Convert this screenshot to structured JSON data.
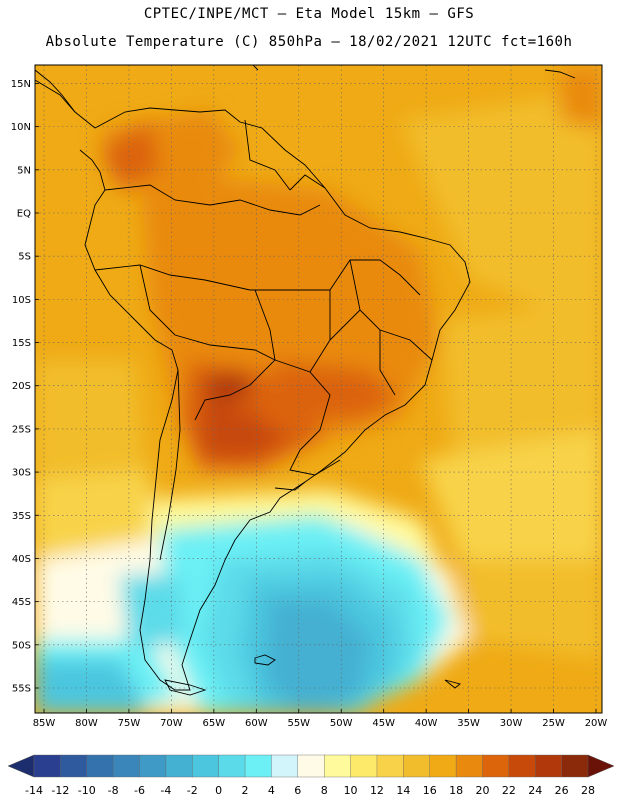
{
  "header": {
    "line1": "CPTEC/INPE/MCT –  Eta Model 15km – GFS",
    "line2": "Absolute Temperature (C) 850hPa – 18/02/2021 12UTC fct=160h"
  },
  "map": {
    "lon_range": [
      -85,
      -20
    ],
    "lat_range": [
      -58,
      17
    ],
    "lat_labels": [
      "15N",
      "10N",
      "5N",
      "EQ",
      "5S",
      "10S",
      "15S",
      "20S",
      "25S",
      "30S",
      "35S",
      "40S",
      "45S",
      "50S",
      "55S"
    ],
    "lat_values": [
      15,
      10,
      5,
      0,
      -5,
      -10,
      -15,
      -20,
      -25,
      -30,
      -35,
      -40,
      -45,
      -50,
      -55
    ],
    "lon_labels": [
      "85W",
      "80W",
      "75W",
      "70W",
      "65W",
      "60W",
      "55W",
      "50W",
      "45W",
      "40W",
      "35W",
      "30W",
      "25W",
      "20W"
    ],
    "lon_values": [
      -85,
      -80,
      -75,
      -70,
      -65,
      -60,
      -55,
      -50,
      -45,
      -40,
      -35,
      -30,
      -25,
      -20
    ],
    "grid": "dotted"
  },
  "colorbar": {
    "labels": [
      "-14",
      "-12",
      "-10",
      "-8",
      "-6",
      "-4",
      "-2",
      "0",
      "2",
      "4",
      "6",
      "8",
      "10",
      "12",
      "14",
      "16",
      "18",
      "20",
      "22",
      "24",
      "26",
      "28"
    ],
    "colors": [
      "#2a3f8f",
      "#2f5a9e",
      "#3472ad",
      "#3a86bb",
      "#3f9bc6",
      "#44b0d2",
      "#4cc6df",
      "#5bdbe9",
      "#6cf0f5",
      "#d2f4fb",
      "#fffbe6",
      "#fffa9c",
      "#fde96a",
      "#f8d349",
      "#f2bd2c",
      "#efaa15",
      "#e98a0f",
      "#dc640b",
      "#c84a0a",
      "#b0380a",
      "#8a2a0a"
    ],
    "left_arrow_color": "#1d2e6e",
    "right_arrow_color": "#6a1208"
  }
}
